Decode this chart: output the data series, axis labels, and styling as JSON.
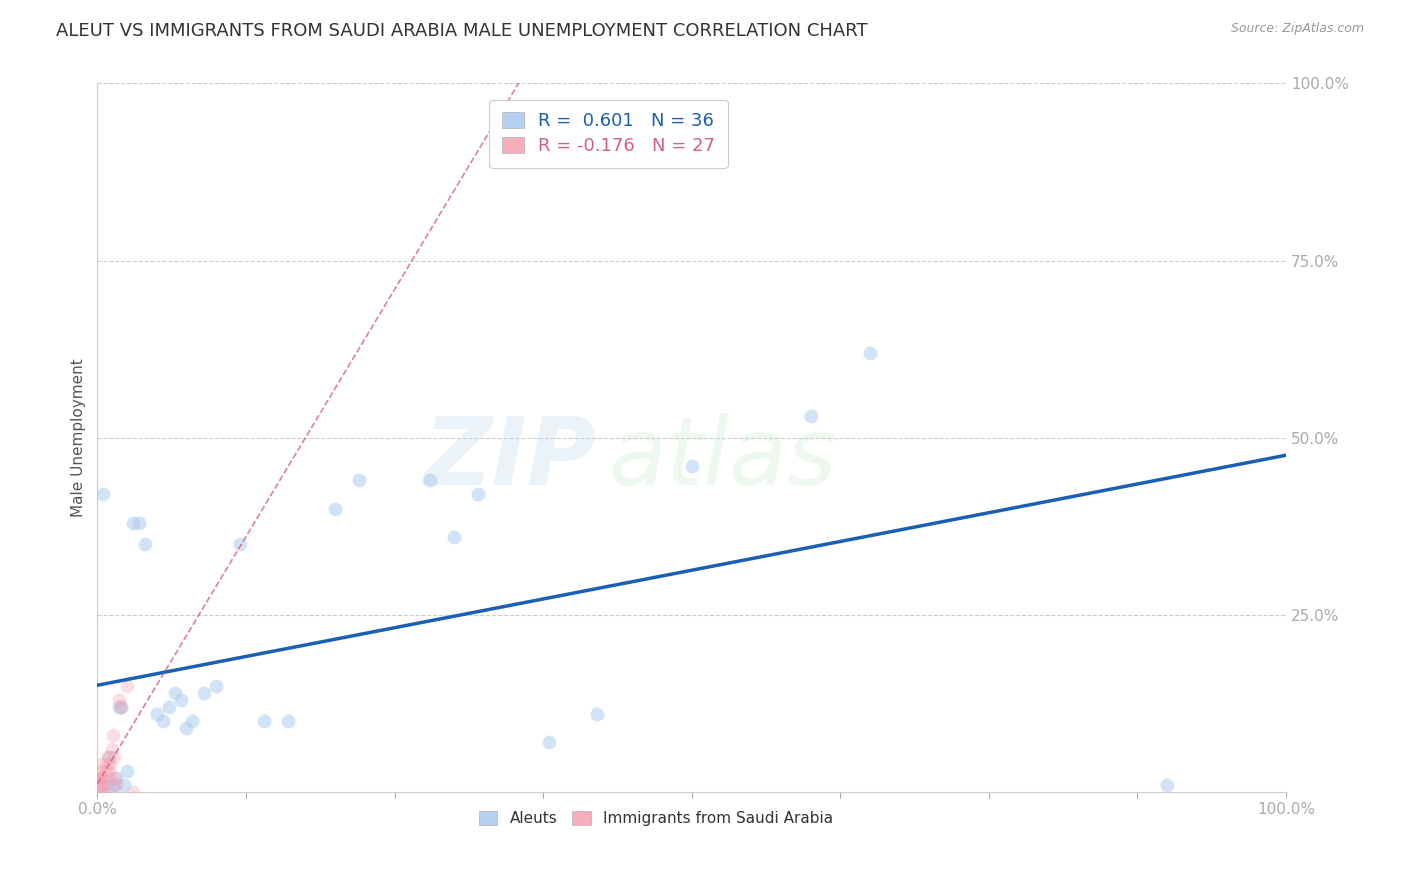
{
  "title": "ALEUT VS IMMIGRANTS FROM SAUDI ARABIA MALE UNEMPLOYMENT CORRELATION CHART",
  "source": "Source: ZipAtlas.com",
  "ylabel": "Male Unemployment",
  "xlim": [
    0,
    1.0
  ],
  "ylim": [
    0,
    1.0
  ],
  "ytick_positions": [
    0.0,
    0.25,
    0.5,
    0.75,
    1.0
  ],
  "xtick_positions": [
    0.0,
    0.125,
    0.25,
    0.375,
    0.5,
    0.625,
    0.75,
    0.875,
    1.0
  ],
  "aleut_color": "#a8c8f0",
  "saudi_color": "#f5a0b0",
  "line_color_aleut": "#1a5fb4",
  "line_color_saudi": "#d46080",
  "legend_line1": "R =  0.601   N = 36",
  "legend_line2": "R = -0.176   N = 27",
  "watermark_zip": "ZIP",
  "watermark_atlas": "atlas",
  "background_color": "#ffffff",
  "grid_color": "#cccccc",
  "title_fontsize": 13,
  "axis_label_fontsize": 11,
  "tick_fontsize": 11,
  "tick_color": "#4a90d9",
  "marker_size": 100,
  "marker_alpha_aleut": 0.5,
  "marker_alpha_saudi": 0.35,
  "aleut_x": [
    0.005,
    0.008,
    0.01,
    0.012,
    0.015,
    0.016,
    0.018,
    0.02,
    0.022,
    0.025,
    0.03,
    0.035,
    0.04,
    0.05,
    0.055,
    0.06,
    0.065,
    0.07,
    0.075,
    0.08,
    0.09,
    0.1,
    0.12,
    0.14,
    0.16,
    0.2,
    0.22,
    0.28,
    0.3,
    0.32,
    0.38,
    0.42,
    0.5,
    0.6,
    0.65,
    0.9
  ],
  "aleut_y": [
    0.42,
    0.01,
    0.05,
    0.01,
    0.01,
    0.02,
    0.12,
    0.12,
    0.01,
    0.03,
    0.38,
    0.38,
    0.35,
    0.11,
    0.1,
    0.12,
    0.14,
    0.13,
    0.09,
    0.1,
    0.14,
    0.15,
    0.35,
    0.1,
    0.1,
    0.4,
    0.44,
    0.44,
    0.36,
    0.42,
    0.07,
    0.11,
    0.46,
    0.53,
    0.62,
    0.01
  ],
  "saudi_x": [
    0.0,
    0.001,
    0.001,
    0.002,
    0.002,
    0.003,
    0.003,
    0.004,
    0.004,
    0.005,
    0.005,
    0.006,
    0.007,
    0.008,
    0.009,
    0.01,
    0.01,
    0.011,
    0.012,
    0.013,
    0.014,
    0.015,
    0.016,
    0.018,
    0.02,
    0.025,
    0.03
  ],
  "saudi_y": [
    0.02,
    0.01,
    0.02,
    0.01,
    0.03,
    0.02,
    0.04,
    0.0,
    0.01,
    0.01,
    0.02,
    0.0,
    0.03,
    0.04,
    0.05,
    0.02,
    0.03,
    0.04,
    0.06,
    0.08,
    0.05,
    0.02,
    0.01,
    0.13,
    0.12,
    0.15,
    0.0
  ]
}
